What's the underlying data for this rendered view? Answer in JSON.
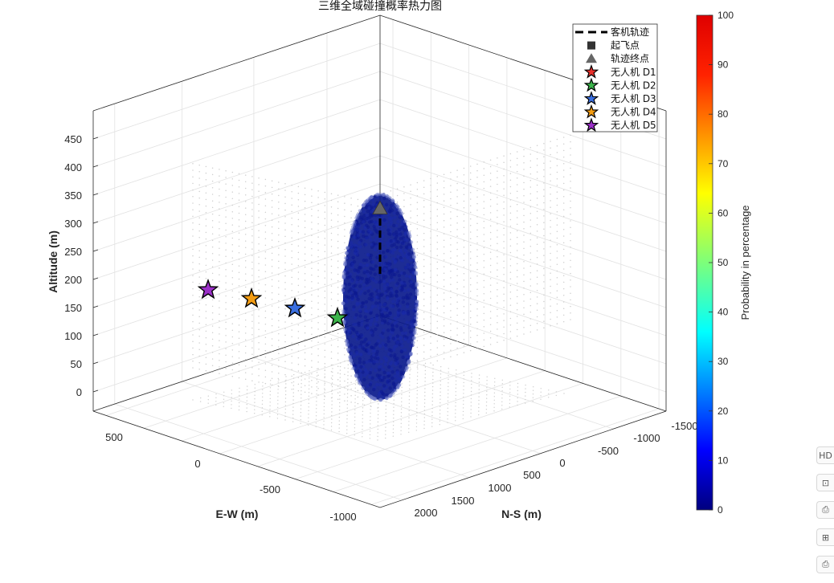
{
  "chart_data": {
    "type": "scatter",
    "title": "三维全域碰撞概率热力图",
    "xlabel": "N-S (m)",
    "ylabel": "E-W (m)",
    "zlabel": "Altitude (m)",
    "x_ticks": [
      "-1500",
      "-1000",
      "-500",
      "0",
      "500",
      "1000",
      "1500",
      "2000"
    ],
    "y_ticks": [
      "500",
      "0",
      "-500",
      "-1000"
    ],
    "z_ticks": [
      "0",
      "50",
      "100",
      "150",
      "200",
      "250",
      "300",
      "350",
      "400",
      "450"
    ],
    "colorbar": {
      "label": "Probability in percentage",
      "ticks": [
        "0",
        "10",
        "20",
        "30",
        "40",
        "50",
        "60",
        "70",
        "80",
        "90",
        "100"
      ],
      "range": [
        0,
        100
      ],
      "colormap": "jet"
    },
    "grid": true,
    "legend_position": "top-right",
    "legend": [
      {
        "label": "客机轨迹",
        "marker": "dashed-line",
        "color": "#000000"
      },
      {
        "label": "起飞点",
        "marker": "square",
        "color": "#333333"
      },
      {
        "label": "轨迹终点",
        "marker": "triangle",
        "color": "#666666"
      },
      {
        "label": "无人机 D1",
        "marker": "star",
        "color": "#e8302c"
      },
      {
        "label": "无人机 D2",
        "marker": "star",
        "color": "#3cb44b"
      },
      {
        "label": "无人机 D3",
        "marker": "star",
        "color": "#3a6fe0"
      },
      {
        "label": "无人机 D4",
        "marker": "star",
        "color": "#f39c12"
      },
      {
        "label": "无人机 D5",
        "marker": "star",
        "color": "#9b30c8"
      }
    ],
    "drones": [
      {
        "name": "无人机 D2",
        "ns": 0,
        "ew": -100,
        "alt": 135,
        "color": "#3cb44b"
      },
      {
        "name": "无人机 D3",
        "ns": 0,
        "ew": -450,
        "alt": 150,
        "color": "#3a6fe0"
      },
      {
        "name": "无人机 D4",
        "ns": 0,
        "ew": -800,
        "alt": 165,
        "color": "#f39c12"
      },
      {
        "name": "无人机 D5",
        "ns": 0,
        "ew": -1150,
        "alt": 180,
        "color": "#9b30c8"
      }
    ],
    "trajectory": {
      "ns": 0,
      "ew": 0,
      "alt_start": 210,
      "alt_end": 325,
      "color": "#000000"
    },
    "trajectory_end": {
      "ns": 0,
      "ew": 0,
      "alt": 325,
      "color": "#666666"
    },
    "collision_cloud": {
      "center_ns": 0,
      "center_ew": 0,
      "alt_min": 0,
      "alt_max": 340,
      "probability": 0,
      "color": "#0a1a8c"
    }
  },
  "toolbar": [
    {
      "name": "hd-icon",
      "glyph": "HD"
    },
    {
      "name": "image-text-icon",
      "glyph": "⊡"
    },
    {
      "name": "print-icon",
      "glyph": "⎙"
    },
    {
      "name": "image-export-icon",
      "glyph": "⊞"
    },
    {
      "name": "printer-icon",
      "glyph": "⎙"
    }
  ]
}
